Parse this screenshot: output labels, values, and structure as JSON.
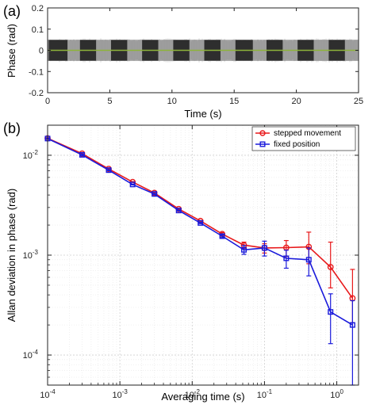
{
  "chart_data": [
    {
      "panel_label": "(a)",
      "type": "line",
      "xlabel": "Time (s)",
      "ylabel": "Phase (rad)",
      "xlim": [
        0,
        25
      ],
      "ylim": [
        -0.2,
        0.2
      ],
      "xticks": [
        "0",
        "5",
        "10",
        "15",
        "20",
        "25"
      ],
      "yticks": [
        "0.2",
        "0.1",
        "0",
        "-0.1",
        "-0.2"
      ],
      "signal_amplitude_rad": 0.05,
      "colors": {
        "dark_bursts": "#2b2b2b",
        "light_background": "#a6a6a6",
        "mean_line": "#8db33a"
      },
      "dark_segments_s": [
        [
          0.1,
          1.6
        ],
        [
          2.6,
          3.9
        ],
        [
          5.1,
          6.4
        ],
        [
          7.6,
          8.9
        ],
        [
          10.1,
          11.4
        ],
        [
          12.6,
          13.9
        ],
        [
          15.1,
          16.5
        ],
        [
          17.6,
          18.9
        ],
        [
          20.1,
          21.4
        ],
        [
          22.6,
          23.9
        ]
      ],
      "mean_line_value_rad": 0
    },
    {
      "panel_label": "(b)",
      "type": "line",
      "scale": "log-log",
      "grid": true,
      "legend_position": "top-right",
      "xlabel": "Averaging time (s)",
      "ylabel": "Allan deviation in phase (rad)",
      "xlim": [
        0.0001,
        2
      ],
      "ylim": [
        5e-05,
        0.02
      ],
      "xticks": [
        {
          "base": "10",
          "exp": "-4",
          "value": 0.0001
        },
        {
          "base": "10",
          "exp": "-3",
          "value": 0.001
        },
        {
          "base": "10",
          "exp": "-2",
          "value": 0.01
        },
        {
          "base": "10",
          "exp": "-1",
          "value": 0.1
        },
        {
          "base": "10",
          "exp": "0",
          "value": 1
        }
      ],
      "yticks": [
        {
          "base": "10",
          "exp": "-2",
          "value": 0.01
        },
        {
          "base": "10",
          "exp": "-3",
          "value": 0.001
        },
        {
          "base": "10",
          "exp": "-4",
          "value": 0.0001
        }
      ],
      "series": [
        {
          "name": "stepped movement",
          "color": "#e8191b",
          "marker": "circle",
          "x": [
            0.0001,
            0.0003,
            0.0007,
            0.0015,
            0.003,
            0.0065,
            0.013,
            0.026,
            0.052,
            0.1,
            0.2,
            0.41,
            0.82,
            1.65
          ],
          "y": [
            0.0148,
            0.0104,
            0.0073,
            0.0054,
            0.0042,
            0.0029,
            0.0022,
            0.00163,
            0.00126,
            0.00118,
            0.00119,
            0.00121,
            0.00076,
            0.00037
          ],
          "err_low": [
            0.0146,
            0.0102,
            0.0072,
            0.00535,
            0.00415,
            0.00287,
            0.00218,
            0.00158,
            0.00117,
            0.00105,
            0.00097,
            0.00082,
            0.00047,
            0.00021
          ],
          "err_high": [
            0.015,
            0.0106,
            0.0074,
            0.00545,
            0.00425,
            0.00293,
            0.00222,
            0.00168,
            0.00135,
            0.0013,
            0.0014,
            0.0017,
            0.00135,
            0.00072
          ]
        },
        {
          "name": "fixed position",
          "color": "#1a1adb",
          "marker": "square",
          "x": [
            0.0001,
            0.0003,
            0.0007,
            0.0015,
            0.003,
            0.0065,
            0.013,
            0.026,
            0.052,
            0.1,
            0.2,
            0.41,
            0.82,
            1.65
          ],
          "y": [
            0.0147,
            0.0101,
            0.0071,
            0.0051,
            0.0041,
            0.0028,
            0.0021,
            0.00155,
            0.00113,
            0.00118,
            0.00093,
            0.0009,
            0.00027,
            0.0002
          ],
          "err_low": [
            0.0145,
            0.0099,
            0.007,
            0.00505,
            0.00405,
            0.00277,
            0.00207,
            0.0015,
            0.00102,
            0.00098,
            0.00074,
            0.00062,
            0.00013,
            5e-05
          ],
          "err_high": [
            0.0149,
            0.0103,
            0.0072,
            0.00515,
            0.00415,
            0.00283,
            0.00213,
            0.0016,
            0.00125,
            0.00138,
            0.00112,
            0.00118,
            0.00041,
            0.00035
          ]
        }
      ]
    }
  ]
}
